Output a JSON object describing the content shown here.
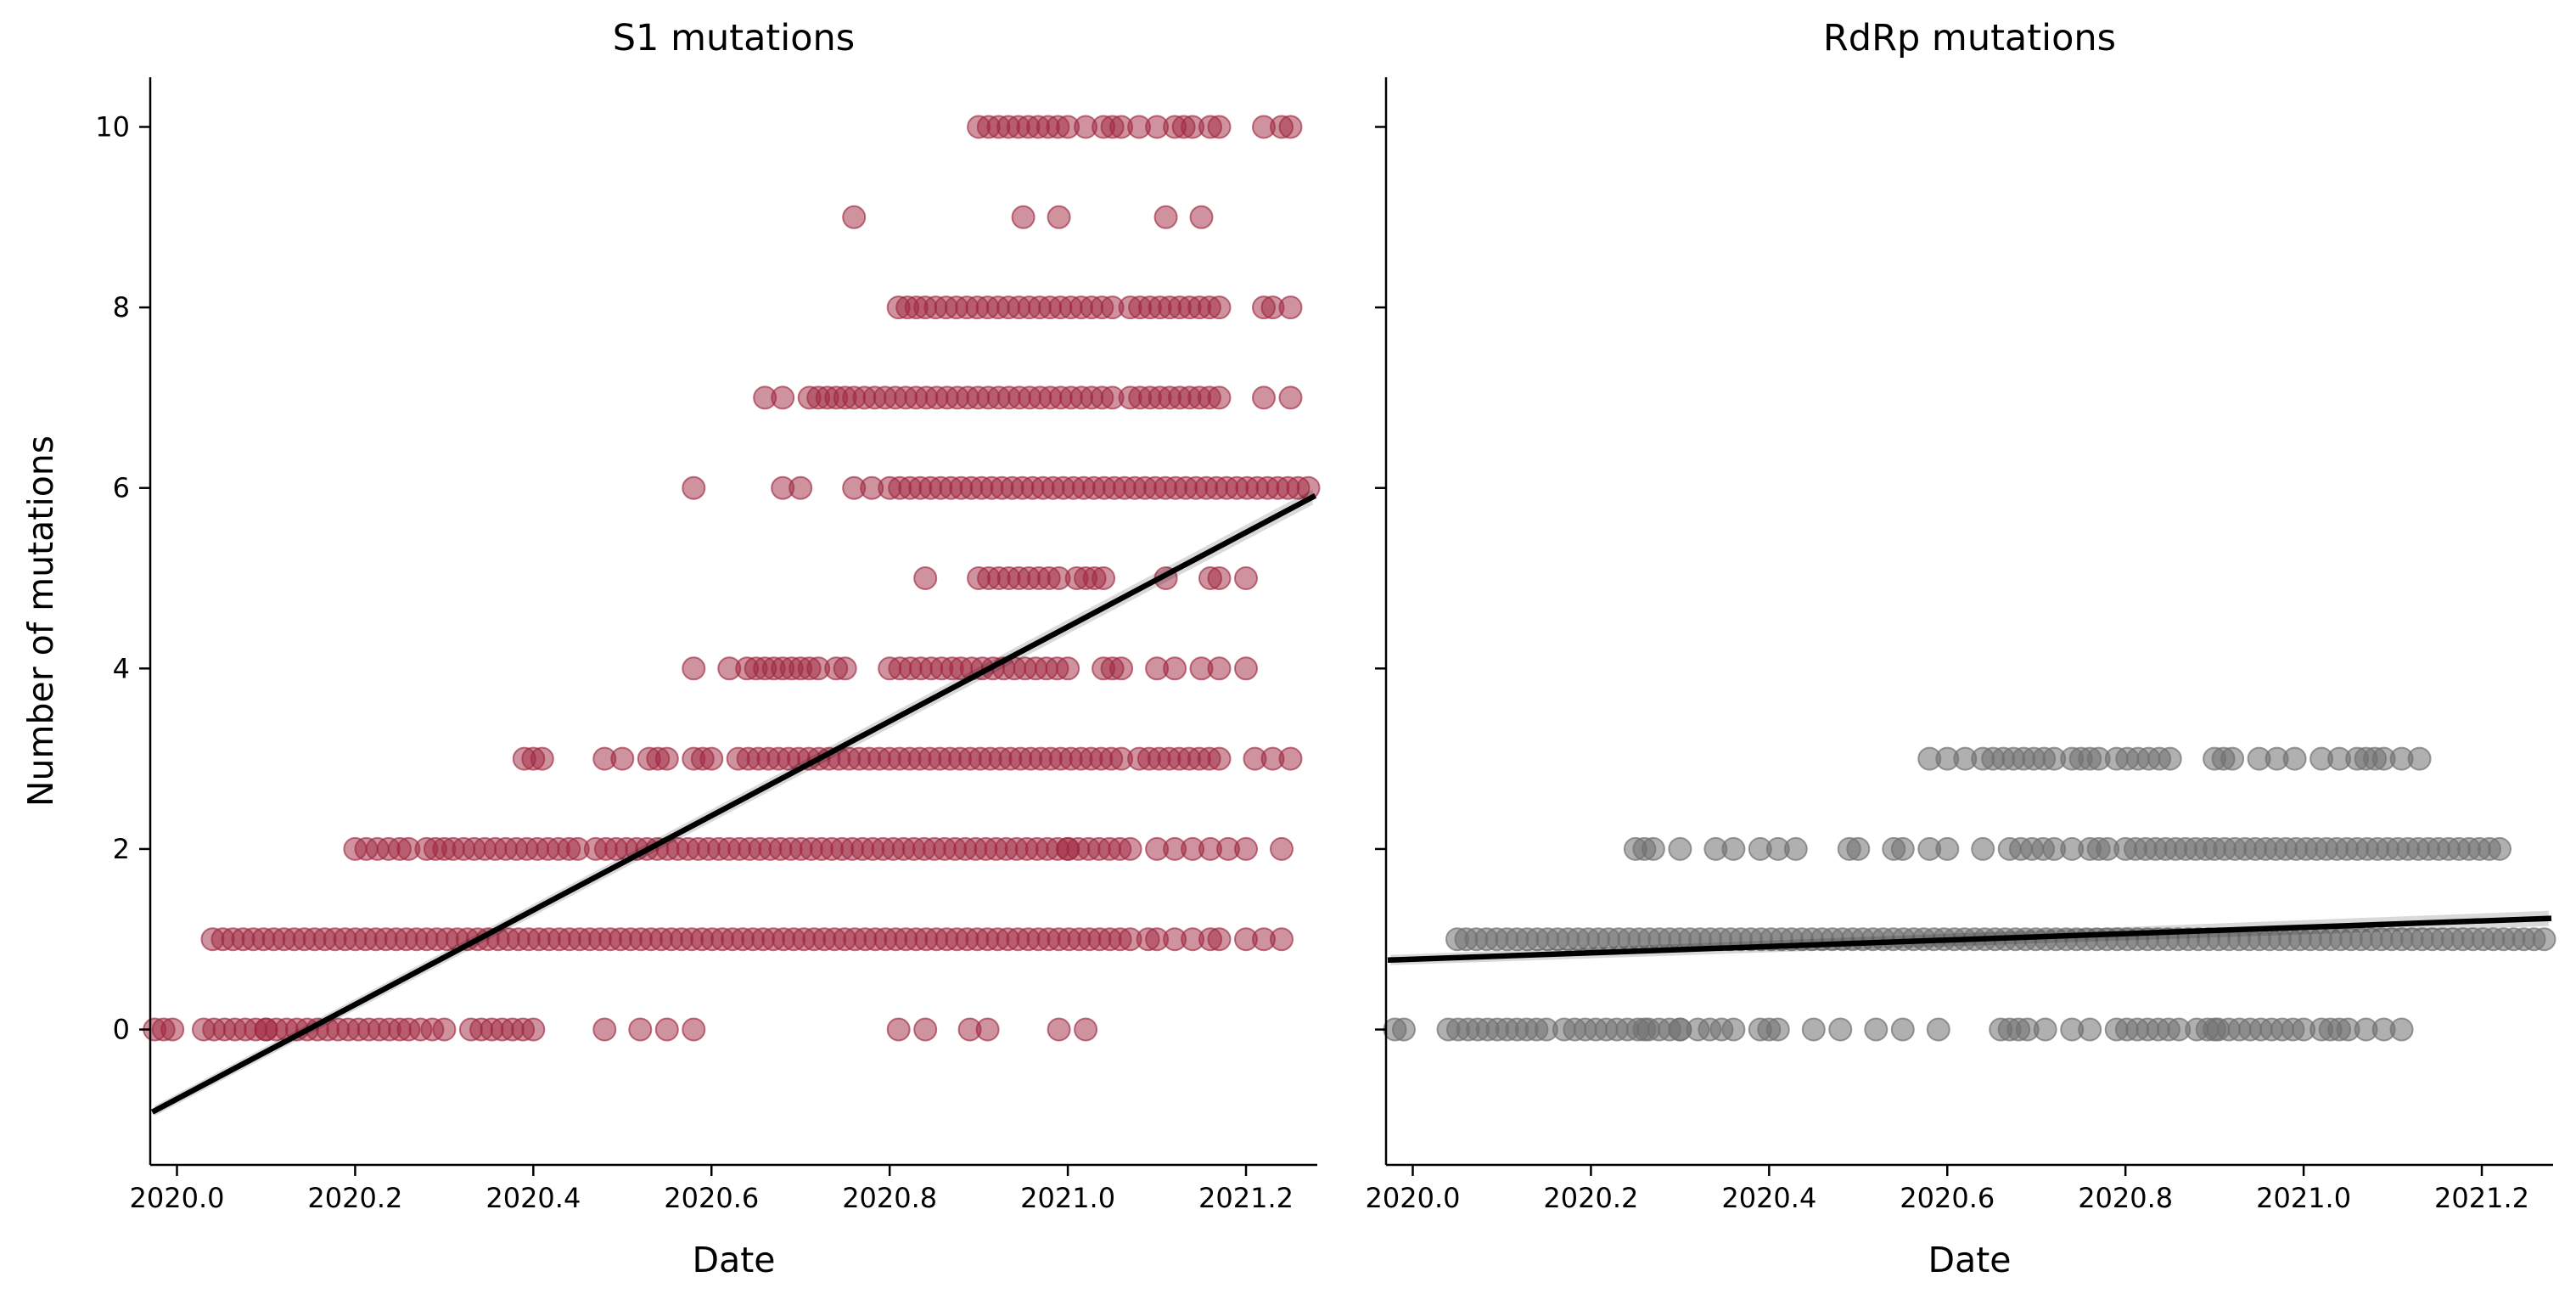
{
  "chart_data": [
    {
      "type": "scatter",
      "title": "S1 mutations",
      "xlabel": "Date",
      "ylabel": "Number of mutations",
      "xlim": [
        2019.97,
        2021.28
      ],
      "ylim": [
        -1.5,
        10.55
      ],
      "xticks": [
        2020.0,
        2020.2,
        2020.4,
        2020.6,
        2020.8,
        2021.0,
        2021.2
      ],
      "xtick_labels": [
        "2020.0",
        "2020.2",
        "2020.4",
        "2020.6",
        "2020.8",
        "2021.0",
        "2021.2"
      ],
      "yticks": [
        0,
        2,
        4,
        6,
        8,
        10
      ],
      "ytick_labels": [
        "0",
        "2",
        "4",
        "6",
        "8",
        "10"
      ],
      "point_color": "#a0283f",
      "point_alpha": 0.5,
      "regression_line": {
        "x": [
          2019.975,
          2021.275
        ],
        "y": [
          -0.9,
          5.9
        ],
        "color": "#000000"
      },
      "strips": [
        {
          "y": 0,
          "segments": [
            [
              2019.975,
              2019.995
            ],
            [
              2020.03,
              2020.1
            ],
            [
              2020.1,
              2020.25
            ],
            [
              2020.26,
              2020.3
            ],
            [
              2020.33,
              2020.4
            ]
          ],
          "points": [
            2020.48,
            2020.52,
            2020.55,
            2020.58,
            2020.81,
            2020.84,
            2020.89,
            2020.91,
            2020.99,
            2021.02
          ]
        },
        {
          "y": 1,
          "segments": [
            [
              2020.04,
              2021.07
            ]
          ],
          "points": [
            2021.09,
            2021.1,
            2021.12,
            2021.14,
            2021.16,
            2021.17,
            2021.2,
            2021.22,
            2021.24
          ]
        },
        {
          "y": 2,
          "segments": [
            [
              2020.2,
              2020.25
            ],
            [
              2020.28,
              2020.3
            ],
            [
              2020.31,
              2020.44
            ],
            [
              2020.47,
              2021.0
            ],
            [
              2021.0,
              2021.07
            ]
          ],
          "points": [
            2020.26,
            2020.45,
            2021.1,
            2021.12,
            2021.14,
            2021.16,
            2021.18,
            2021.2,
            2021.24
          ]
        },
        {
          "y": 3,
          "segments": [
            [
              2020.39,
              2020.41
            ],
            [
              2020.53,
              2020.55
            ],
            [
              2020.58,
              2020.6
            ],
            [
              2020.63,
              2021.06
            ],
            [
              2021.08,
              2021.17
            ]
          ],
          "points": [
            2020.48,
            2020.5,
            2021.21,
            2021.23,
            2021.25
          ]
        },
        {
          "y": 4,
          "segments": [
            [
              2020.64,
              2020.67
            ],
            [
              2020.69,
              2020.71
            ],
            [
              2020.74,
              2020.75
            ],
            [
              2020.8,
              2020.87
            ],
            [
              2020.88,
              2021.0
            ],
            [
              2021.04,
              2021.06
            ]
          ],
          "points": [
            2020.58,
            2020.62,
            2020.68,
            2020.72,
            2021.1,
            2021.12,
            2021.15,
            2021.17,
            2021.2
          ]
        },
        {
          "y": 5,
          "segments": [
            [
              2020.9,
              2020.99
            ],
            [
              2021.01,
              2021.04
            ]
          ],
          "points": [
            2020.84,
            2021.11,
            2021.16,
            2021.17,
            2021.2
          ]
        },
        {
          "y": 6,
          "segments": [
            [
              2020.8,
              2021.27
            ]
          ],
          "points": [
            2020.58,
            2020.68,
            2020.7,
            2020.76,
            2020.78
          ]
        },
        {
          "y": 7,
          "segments": [
            [
              2020.72,
              2020.75
            ],
            [
              2020.76,
              2021.05
            ],
            [
              2021.07,
              2021.17
            ]
          ],
          "points": [
            2020.66,
            2020.68,
            2020.71,
            2021.22,
            2021.25
          ]
        },
        {
          "y": 8,
          "segments": [
            [
              2020.81,
              2020.83
            ],
            [
              2020.84,
              2021.05
            ],
            [
              2021.07,
              2021.17
            ]
          ],
          "points": [
            2021.22,
            2021.23,
            2021.25
          ]
        },
        {
          "y": 9,
          "segments": [],
          "points": [
            2020.76,
            2020.95,
            2020.99,
            2021.11,
            2021.15
          ]
        },
        {
          "y": 10,
          "segments": [
            [
              2020.9,
              2021.0
            ],
            [
              2021.05,
              2021.06
            ],
            [
              2021.13,
              2021.14
            ],
            [
              2021.16,
              2021.17
            ],
            [
              2021.24,
              2021.25
            ]
          ],
          "points": [
            2021.02,
            2021.04,
            2021.08,
            2021.1,
            2021.12,
            2021.22
          ]
        }
      ]
    },
    {
      "type": "scatter",
      "title": "RdRp mutations",
      "xlabel": "Date",
      "ylabel": "",
      "xlim": [
        2019.97,
        2021.28
      ],
      "ylim": [
        -1.5,
        10.55
      ],
      "xticks": [
        2020.0,
        2020.2,
        2020.4,
        2020.6,
        2020.8,
        2021.0,
        2021.2
      ],
      "xtick_labels": [
        "2020.0",
        "2020.2",
        "2020.4",
        "2020.6",
        "2020.8",
        "2021.0",
        "2021.2"
      ],
      "yticks": [
        0,
        2,
        4,
        6,
        8,
        10
      ],
      "ytick_labels": [
        "",
        "",
        "",
        "",
        "",
        ""
      ],
      "point_color": "#707070",
      "point_alpha": 0.55,
      "regression_line": {
        "x": [
          2019.975,
          2021.275
        ],
        "y": [
          0.77,
          1.23
        ],
        "color": "#000000"
      },
      "strips": [
        {
          "y": 0,
          "segments": [
            [
              2019.98,
              2019.99
            ],
            [
              2020.04,
              2020.15
            ],
            [
              2020.17,
              2020.3
            ],
            [
              2020.32,
              2020.36
            ],
            [
              2020.39,
              2020.41
            ],
            [
              2020.66,
              2020.68
            ],
            [
              2020.79,
              2020.86
            ],
            [
              2020.88,
              2021.0
            ],
            [
              2021.02,
              2021.05
            ]
          ],
          "points": [
            2020.26,
            2020.3,
            2020.45,
            2020.48,
            2020.52,
            2020.55,
            2020.59,
            2020.69,
            2020.71,
            2020.74,
            2020.76,
            2020.9,
            2021.07,
            2021.09,
            2021.11
          ]
        },
        {
          "y": 1,
          "segments": [
            [
              2020.06,
              2021.27
            ]
          ],
          "points": [
            2020.05
          ]
        },
        {
          "y": 2,
          "segments": [
            [
              2020.25,
              2020.27
            ],
            [
              2020.54,
              2020.55
            ],
            [
              2020.67,
              2020.72
            ],
            [
              2020.76,
              2020.77
            ],
            [
              2020.8,
              2020.89
            ],
            [
              2020.9,
              2021.22
            ]
          ],
          "points": [
            2020.3,
            2020.34,
            2020.36,
            2020.39,
            2020.41,
            2020.43,
            2020.49,
            2020.5,
            2020.58,
            2020.6,
            2020.64,
            2020.74,
            2020.78
          ]
        },
        {
          "y": 3,
          "segments": [
            [
              2020.64,
              2020.72
            ],
            [
              2020.74,
              2020.76
            ],
            [
              2020.79,
              2020.85
            ],
            [
              2020.9,
              2020.92
            ],
            [
              2021.06,
              2021.09
            ]
          ],
          "points": [
            2020.58,
            2020.6,
            2020.62,
            2020.77,
            2020.95,
            2020.97,
            2020.99,
            2021.02,
            2021.04,
            2021.11,
            2021.13
          ]
        }
      ]
    }
  ]
}
